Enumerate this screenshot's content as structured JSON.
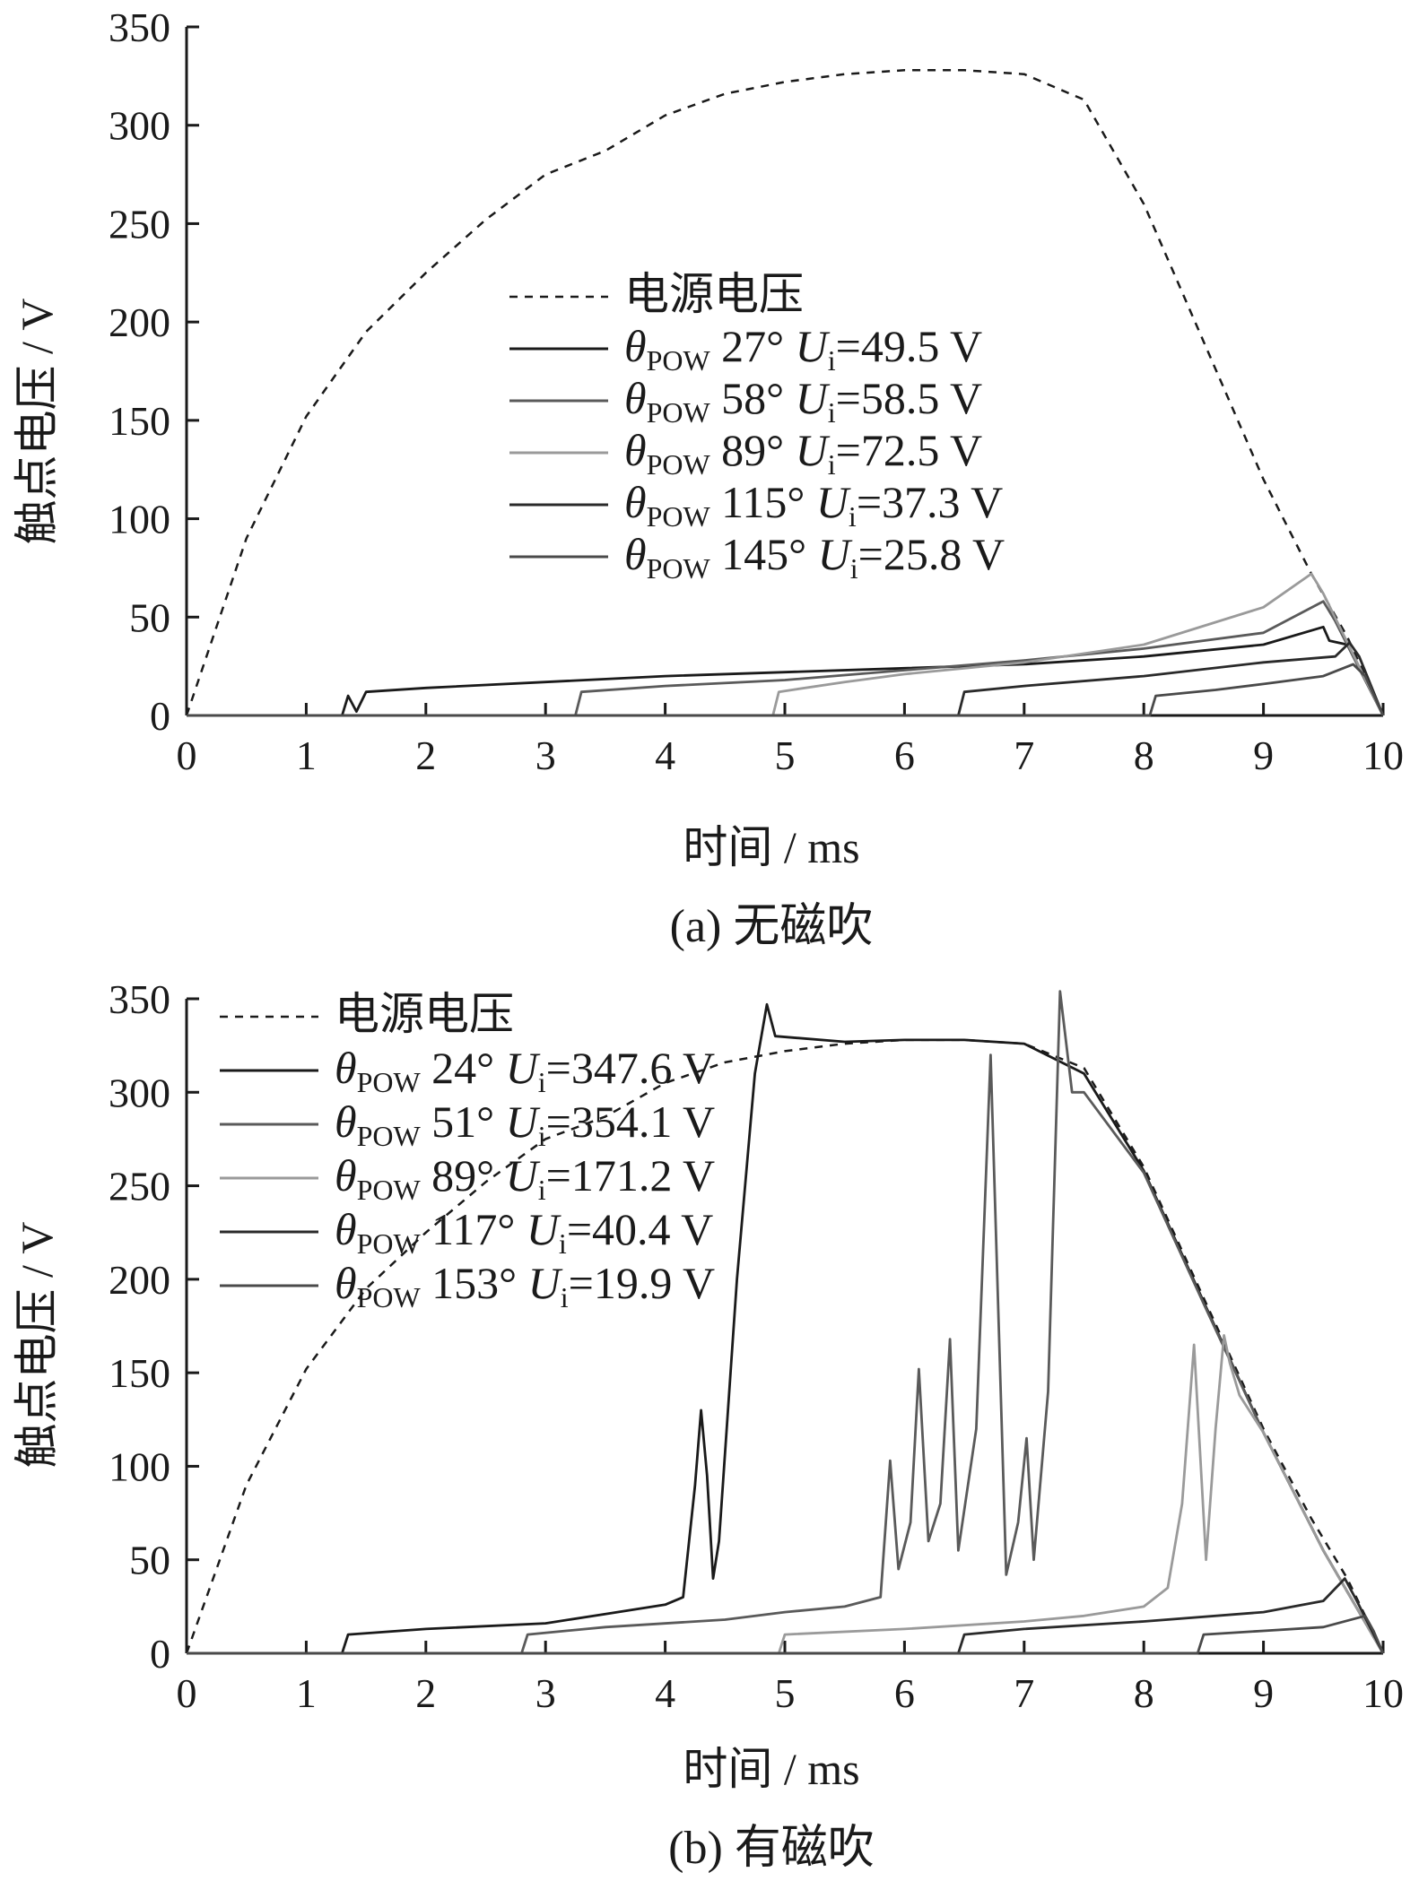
{
  "chart_data": [
    {
      "panel": "(a)",
      "type": "line",
      "caption": "(a)  无磁吹",
      "xlabel": "时间 / ms",
      "ylabel": "触点电压 / V",
      "xlim": [
        0,
        10
      ],
      "ylim": [
        0,
        350
      ],
      "xticks": [
        0,
        1,
        2,
        3,
        4,
        5,
        6,
        7,
        8,
        9,
        10
      ],
      "yticks": [
        0,
        50,
        100,
        150,
        200,
        250,
        300,
        350
      ],
      "grid": false,
      "legend_position": "center",
      "series": [
        {
          "name": "电源电压",
          "style": "dashed",
          "color": "#1a1a1a",
          "points": [
            [
              0,
              0
            ],
            [
              0.5,
              90
            ],
            [
              1,
              152
            ],
            [
              1.5,
              195
            ],
            [
              2,
              225
            ],
            [
              2.5,
              252
            ],
            [
              3,
              275
            ],
            [
              3.5,
              287
            ],
            [
              4,
              305
            ],
            [
              4.5,
              316
            ],
            [
              5,
              322
            ],
            [
              5.5,
              326
            ],
            [
              6,
              328
            ],
            [
              6.5,
              328
            ],
            [
              7,
              326
            ],
            [
              7.5,
              313
            ],
            [
              8,
              260
            ],
            [
              8.5,
              190
            ],
            [
              9,
              120
            ],
            [
              9.4,
              72
            ],
            [
              9.7,
              40
            ],
            [
              10,
              0
            ]
          ]
        },
        {
          "name": "θPOW 27°  Ui=49.5 V",
          "legend_theta": "θ",
          "legend_sub": "POW",
          "legend_angle": " 27°",
          "legend_u": "U",
          "legend_usub": "i",
          "legend_val": "=49.5 V",
          "style": "solid",
          "color": "#1a1a1a",
          "points": [
            [
              0,
              0
            ],
            [
              1.3,
              0
            ],
            [
              1.35,
              10
            ],
            [
              1.42,
              2
            ],
            [
              1.5,
              12
            ],
            [
              2,
              14
            ],
            [
              3,
              17
            ],
            [
              4,
              20
            ],
            [
              5,
              22
            ],
            [
              6,
              24
            ],
            [
              7,
              26
            ],
            [
              8,
              30
            ],
            [
              9,
              36
            ],
            [
              9.5,
              45
            ],
            [
              9.55,
              38
            ],
            [
              9.7,
              36
            ],
            [
              10,
              0
            ]
          ]
        },
        {
          "name": "θPOW 58°  Ui=58.5 V",
          "legend_theta": "θ",
          "legend_sub": "POW",
          "legend_angle": " 58°",
          "legend_u": "U",
          "legend_usub": "i",
          "legend_val": "=58.5 V",
          "style": "solid",
          "color": "#5a5a5a",
          "points": [
            [
              0,
              0
            ],
            [
              3.25,
              0
            ],
            [
              3.3,
              12
            ],
            [
              4,
              15
            ],
            [
              5,
              18
            ],
            [
              6,
              23
            ],
            [
              7,
              28
            ],
            [
              8,
              34
            ],
            [
              9,
              42
            ],
            [
              9.5,
              58
            ],
            [
              9.6,
              48
            ],
            [
              10,
              0
            ]
          ]
        },
        {
          "name": "θPOW 89°  Ui=72.5 V",
          "legend_theta": "θ",
          "legend_sub": "POW",
          "legend_angle": " 89°",
          "legend_u": "U",
          "legend_usub": "i",
          "legend_val": "=72.5 V",
          "style": "solid",
          "color": "#9a9a9a",
          "points": [
            [
              0,
              0
            ],
            [
              4.9,
              0
            ],
            [
              4.95,
              12
            ],
            [
              5.5,
              17
            ],
            [
              6,
              21
            ],
            [
              7,
              27
            ],
            [
              8,
              36
            ],
            [
              9,
              55
            ],
            [
              9.4,
              72
            ],
            [
              9.5,
              62
            ],
            [
              10,
              0
            ]
          ]
        },
        {
          "name": "θPOW 115°  Ui=37.3 V",
          "legend_theta": "θ",
          "legend_sub": "POW",
          "legend_angle": " 115°",
          "legend_u": "U",
          "legend_usub": "i",
          "legend_val": "=37.3 V",
          "style": "solid",
          "color": "#2a2a2a",
          "points": [
            [
              0,
              0
            ],
            [
              6.45,
              0
            ],
            [
              6.5,
              12
            ],
            [
              7,
              15
            ],
            [
              8,
              20
            ],
            [
              9,
              27
            ],
            [
              9.6,
              30
            ],
            [
              9.72,
              37
            ],
            [
              9.8,
              30
            ],
            [
              10,
              0
            ]
          ]
        },
        {
          "name": "θPOW 145°  Ui=25.8 V",
          "legend_theta": "θ",
          "legend_sub": "POW",
          "legend_angle": " 145°",
          "legend_u": "U",
          "legend_usub": "i",
          "legend_val": "=25.8 V",
          "style": "solid",
          "color": "#4a4a4a",
          "points": [
            [
              0,
              0
            ],
            [
              8.05,
              0
            ],
            [
              8.1,
              10
            ],
            [
              8.6,
              13
            ],
            [
              9,
              16
            ],
            [
              9.5,
              20
            ],
            [
              9.75,
              26
            ],
            [
              9.85,
              20
            ],
            [
              10,
              0
            ]
          ]
        }
      ]
    },
    {
      "panel": "(b)",
      "type": "line",
      "caption": "(b)  有磁吹",
      "xlabel": "时间 / ms",
      "ylabel": "触点电压 / V",
      "xlim": [
        0,
        10
      ],
      "ylim": [
        0,
        350
      ],
      "xticks": [
        0,
        1,
        2,
        3,
        4,
        5,
        6,
        7,
        8,
        9,
        10
      ],
      "yticks": [
        0,
        50,
        100,
        150,
        200,
        250,
        300,
        350
      ],
      "grid": false,
      "legend_position": "top-left",
      "series": [
        {
          "name": "电源电压",
          "style": "dashed",
          "color": "#1a1a1a",
          "points": [
            [
              0,
              0
            ],
            [
              0.5,
              90
            ],
            [
              1,
              152
            ],
            [
              1.5,
              195
            ],
            [
              2,
              225
            ],
            [
              2.5,
              252
            ],
            [
              3,
              275
            ],
            [
              3.5,
              287
            ],
            [
              4,
              305
            ],
            [
              4.5,
              316
            ],
            [
              5,
              322
            ],
            [
              5.5,
              326
            ],
            [
              6,
              328
            ],
            [
              6.5,
              328
            ],
            [
              7,
              326
            ],
            [
              7.5,
              313
            ],
            [
              8,
              260
            ],
            [
              8.5,
              190
            ],
            [
              9,
              120
            ],
            [
              9.4,
              72
            ],
            [
              9.7,
              40
            ],
            [
              10,
              0
            ]
          ]
        },
        {
          "name": "θPOW 24°  Ui=347.6 V",
          "legend_theta": "θ",
          "legend_sub": "POW",
          "legend_angle": " 24°",
          "legend_u": "U",
          "legend_usub": "i",
          "legend_val": "=347.6 V",
          "style": "solid",
          "color": "#1a1a1a",
          "points": [
            [
              0,
              0
            ],
            [
              1.3,
              0
            ],
            [
              1.35,
              10
            ],
            [
              2,
              13
            ],
            [
              3,
              16
            ],
            [
              3.5,
              21
            ],
            [
              4,
              26
            ],
            [
              4.15,
              30
            ],
            [
              4.25,
              90
            ],
            [
              4.3,
              130
            ],
            [
              4.35,
              95
            ],
            [
              4.4,
              40
            ],
            [
              4.45,
              60
            ],
            [
              4.6,
              200
            ],
            [
              4.75,
              310
            ],
            [
              4.85,
              347
            ],
            [
              4.92,
              330
            ],
            [
              5.5,
              327
            ],
            [
              6,
              328
            ],
            [
              6.5,
              328
            ],
            [
              7,
              326
            ],
            [
              7.5,
              310
            ],
            [
              8,
              258
            ],
            [
              8.5,
              188
            ],
            [
              9,
              118
            ],
            [
              9.5,
              55
            ],
            [
              10,
              0
            ]
          ]
        },
        {
          "name": "θPOW 51°  Ui=354.1 V",
          "legend_theta": "θ",
          "legend_sub": "POW",
          "legend_angle": " 51°",
          "legend_u": "U",
          "legend_usub": "i",
          "legend_val": "=354.1 V",
          "style": "solid",
          "color": "#5a5a5a",
          "points": [
            [
              0,
              0
            ],
            [
              2.8,
              0
            ],
            [
              2.85,
              10
            ],
            [
              3.5,
              14
            ],
            [
              4.5,
              18
            ],
            [
              5,
              22
            ],
            [
              5.5,
              25
            ],
            [
              5.8,
              30
            ],
            [
              5.88,
              103
            ],
            [
              5.95,
              45
            ],
            [
              6.05,
              70
            ],
            [
              6.12,
              152
            ],
            [
              6.2,
              60
            ],
            [
              6.3,
              80
            ],
            [
              6.38,
              168
            ],
            [
              6.45,
              55
            ],
            [
              6.6,
              120
            ],
            [
              6.72,
              320
            ],
            [
              6.85,
              42
            ],
            [
              6.95,
              70
            ],
            [
              7.02,
              115
            ],
            [
              7.08,
              50
            ],
            [
              7.2,
              140
            ],
            [
              7.3,
              354
            ],
            [
              7.4,
              300
            ],
            [
              7.5,
              300
            ],
            [
              8,
              257
            ],
            [
              8.5,
              187
            ],
            [
              9,
              118
            ],
            [
              9.5,
              55
            ],
            [
              10,
              0
            ]
          ]
        },
        {
          "name": "θPOW 89°  Ui=171.2 V",
          "legend_theta": "θ",
          "legend_sub": "POW",
          "legend_angle": " 89°",
          "legend_u": "U",
          "legend_usub": "i",
          "legend_val": "=171.2 V",
          "style": "solid",
          "color": "#9a9a9a",
          "points": [
            [
              0,
              0
            ],
            [
              4.95,
              0
            ],
            [
              5,
              10
            ],
            [
              6,
              13
            ],
            [
              7,
              17
            ],
            [
              7.5,
              20
            ],
            [
              8,
              25
            ],
            [
              8.2,
              35
            ],
            [
              8.32,
              80
            ],
            [
              8.42,
              165
            ],
            [
              8.52,
              50
            ],
            [
              8.6,
              120
            ],
            [
              8.67,
              170
            ],
            [
              8.72,
              155
            ],
            [
              8.8,
              138
            ],
            [
              9,
              118
            ],
            [
              9.5,
              55
            ],
            [
              10,
              0
            ]
          ]
        },
        {
          "name": "θPOW 117°  Ui=40.4 V",
          "legend_theta": "θ",
          "legend_sub": "POW",
          "legend_angle": " 117°",
          "legend_u": "U",
          "legend_usub": "i",
          "legend_val": "=40.4 V",
          "style": "solid",
          "color": "#2a2a2a",
          "points": [
            [
              0,
              0
            ],
            [
              6.45,
              0
            ],
            [
              6.5,
              10
            ],
            [
              7,
              13
            ],
            [
              8,
              17
            ],
            [
              9,
              22
            ],
            [
              9.5,
              28
            ],
            [
              9.68,
              40
            ],
            [
              9.78,
              28
            ],
            [
              10,
              0
            ]
          ]
        },
        {
          "name": "θPOW 153°  Ui=19.9 V",
          "legend_theta": "θ",
          "legend_sub": "POW",
          "legend_angle": " 153°",
          "legend_u": "U",
          "legend_usub": "i",
          "legend_val": "=19.9 V",
          "style": "solid",
          "color": "#4a4a4a",
          "points": [
            [
              0,
              0
            ],
            [
              8.45,
              0
            ],
            [
              8.5,
              10
            ],
            [
              9,
              12
            ],
            [
              9.5,
              14
            ],
            [
              9.85,
              20
            ],
            [
              9.92,
              12
            ],
            [
              10,
              0
            ]
          ]
        }
      ]
    }
  ]
}
